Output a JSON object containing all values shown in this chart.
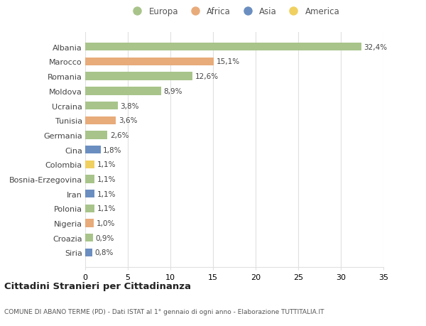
{
  "countries": [
    "Albania",
    "Marocco",
    "Romania",
    "Moldova",
    "Ucraina",
    "Tunisia",
    "Germania",
    "Cina",
    "Colombia",
    "Bosnia-Erzegovina",
    "Iran",
    "Polonia",
    "Nigeria",
    "Croazia",
    "Siria"
  ],
  "values": [
    32.4,
    15.1,
    12.6,
    8.9,
    3.8,
    3.6,
    2.6,
    1.8,
    1.1,
    1.1,
    1.1,
    1.1,
    1.0,
    0.9,
    0.8
  ],
  "labels": [
    "32,4%",
    "15,1%",
    "12,6%",
    "8,9%",
    "3,8%",
    "3,6%",
    "2,6%",
    "1,8%",
    "1,1%",
    "1,1%",
    "1,1%",
    "1,1%",
    "1,0%",
    "0,9%",
    "0,8%"
  ],
  "continents": [
    "Europa",
    "Africa",
    "Europa",
    "Europa",
    "Europa",
    "Africa",
    "Europa",
    "Asia",
    "America",
    "Europa",
    "Asia",
    "Europa",
    "Africa",
    "Europa",
    "Asia"
  ],
  "colors": {
    "Europa": "#a8c48a",
    "Africa": "#e8ab7a",
    "Asia": "#6b8ec0",
    "America": "#f0d060"
  },
  "legend_order": [
    "Europa",
    "Africa",
    "Asia",
    "America"
  ],
  "title": "Cittadini Stranieri per Cittadinanza",
  "subtitle": "COMUNE DI ABANO TERME (PD) - Dati ISTAT al 1° gennaio di ogni anno - Elaborazione TUTTITALIA.IT",
  "xlim": [
    0,
    35
  ],
  "xticks": [
    0,
    5,
    10,
    15,
    20,
    25,
    30,
    35
  ],
  "bg_color": "#ffffff",
  "grid_color": "#e0e0e0"
}
